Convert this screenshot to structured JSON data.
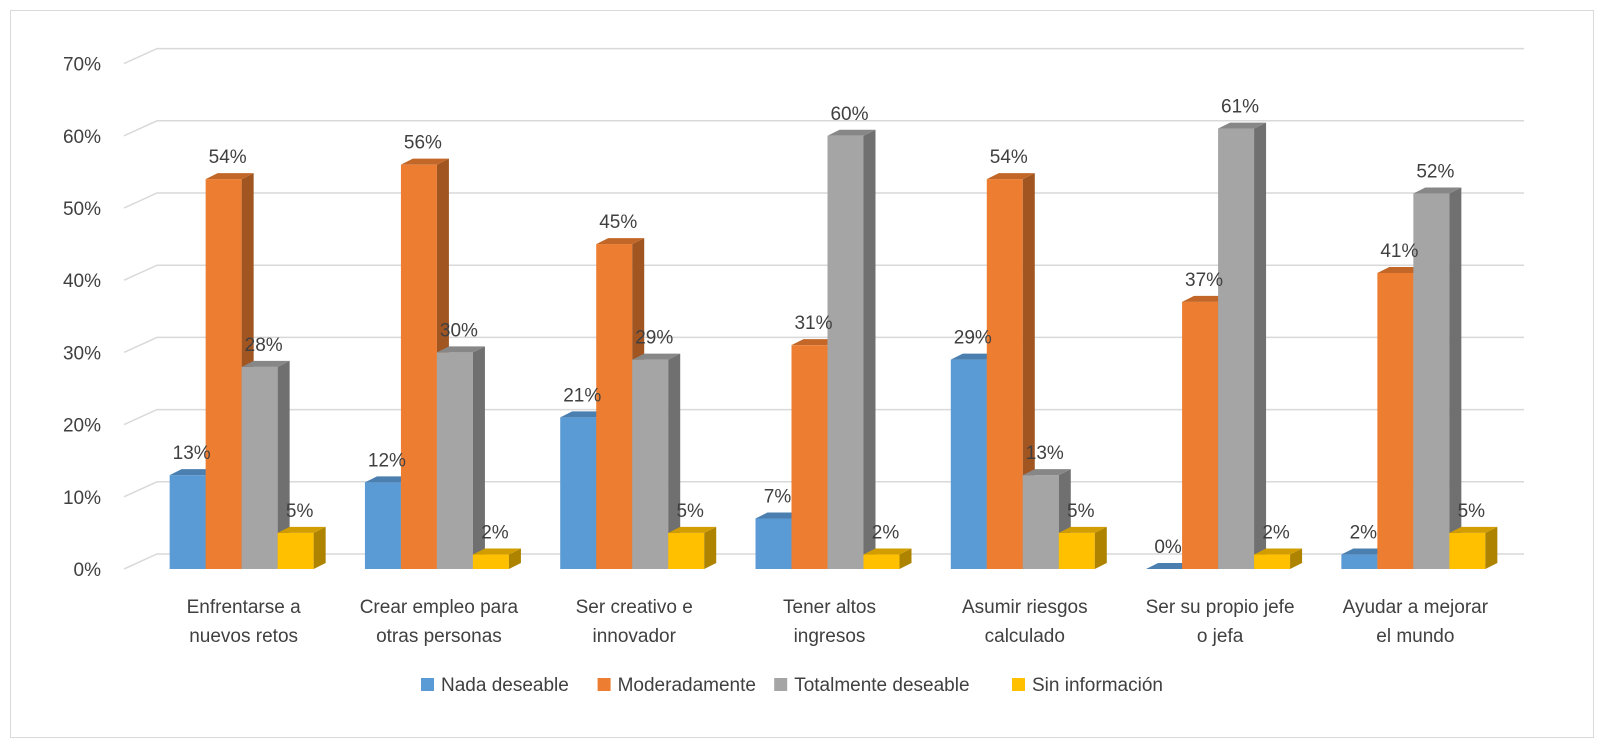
{
  "chart_data": {
    "type": "bar",
    "title": "",
    "xlabel": "",
    "ylabel": "",
    "ylim": [
      0,
      70
    ],
    "y_ticks": [
      "0%",
      "10%",
      "20%",
      "30%",
      "40%",
      "50%",
      "60%",
      "70%"
    ],
    "grid": "horizontal",
    "legend_position": "bottom",
    "style": "3d-clustered-column",
    "categories": [
      [
        "Enfrentarse a",
        "nuevos retos"
      ],
      [
        "Crear empleo para",
        "otras personas"
      ],
      [
        "Ser creativo e",
        "innovador"
      ],
      [
        "Tener altos",
        "ingresos"
      ],
      [
        "Asumir riesgos",
        "calculado"
      ],
      [
        "Ser su propio jefe",
        "o jefa"
      ],
      [
        "Ayudar a mejorar",
        "el mundo"
      ]
    ],
    "series": [
      {
        "name": "Nada deseable",
        "color": "#5b9bd5",
        "values": [
          13,
          12,
          21,
          7,
          29,
          0,
          2
        ],
        "labels": [
          "13%",
          "12%",
          "21%",
          "7%",
          "29%",
          "0%",
          "2%"
        ]
      },
      {
        "name": "Moderadamente",
        "color": "#ed7d31",
        "values": [
          54,
          56,
          45,
          31,
          54,
          37,
          41
        ],
        "labels": [
          "54%",
          "56%",
          "45%",
          "31%",
          "54%",
          "37%",
          "41%"
        ]
      },
      {
        "name": "Totalmente deseable",
        "color": "#a5a5a5",
        "values": [
          28,
          30,
          29,
          60,
          13,
          61,
          52
        ],
        "labels": [
          "28%",
          "30%",
          "29%",
          "60%",
          "13%",
          "61%",
          "52%"
        ]
      },
      {
        "name": "Sin información",
        "color": "#ffc000",
        "values": [
          5,
          2,
          5,
          2,
          5,
          2,
          5
        ],
        "labels": [
          "5%",
          "2%",
          "5%",
          "2%",
          "5%",
          "2%",
          "5%"
        ]
      }
    ]
  }
}
